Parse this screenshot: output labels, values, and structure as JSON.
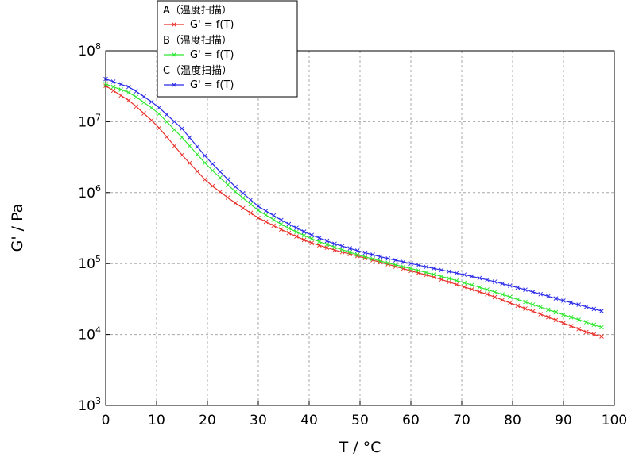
{
  "chart_data": {
    "type": "line",
    "title": "",
    "xlabel": "T / °C",
    "ylabel": "G' / Pa",
    "xlim": [
      0,
      100
    ],
    "ylim_log10": [
      3,
      8
    ],
    "y_scale": "log",
    "grid": true,
    "legend_position": "top-left",
    "x_ticks": [
      "0",
      "10",
      "20",
      "30",
      "40",
      "50",
      "60",
      "70",
      "80",
      "90",
      "100"
    ],
    "y_ticks": [
      {
        "base": "10",
        "exp": "3"
      },
      {
        "base": "10",
        "exp": "4"
      },
      {
        "base": "10",
        "exp": "5"
      },
      {
        "base": "10",
        "exp": "6"
      },
      {
        "base": "10",
        "exp": "7"
      },
      {
        "base": "10",
        "exp": "8"
      }
    ],
    "x": [
      0,
      5,
      10,
      15,
      20,
      25,
      30,
      35,
      40,
      45,
      50,
      55,
      60,
      65,
      70,
      75,
      80,
      85,
      90,
      95,
      98.5
    ],
    "series": [
      {
        "name": "A（温度扫描）",
        "sub_label": "G' = f(T)",
        "color": "#e8302a",
        "values": [
          32000000,
          19000000,
          9000000,
          3400000,
          1400000,
          750000,
          440000,
          290000,
          200000,
          155000,
          125000,
          100000,
          79000,
          63000,
          48000,
          37000,
          27000,
          20000,
          14500,
          10500,
          9000
        ]
      },
      {
        "name": "B（温度扫描）",
        "sub_label": "G' = f(T)",
        "color": "#2ee82e",
        "values": [
          34000000,
          25000000,
          14000000,
          6000000,
          2400000,
          1100000,
          560000,
          340000,
          230000,
          170000,
          130000,
          104000,
          85000,
          69000,
          55000,
          43000,
          33000,
          25000,
          19000,
          14500,
          12000
        ]
      },
      {
        "name": "C（温度扫描）",
        "sub_label": "G' = f(T)",
        "color": "#2a2ae8",
        "values": [
          40000000,
          30000000,
          17000000,
          8000000,
          3000000,
          1300000,
          640000,
          390000,
          260000,
          190000,
          148000,
          120000,
          100000,
          84000,
          71000,
          59000,
          48000,
          38000,
          30000,
          24000,
          20500
        ]
      }
    ]
  }
}
